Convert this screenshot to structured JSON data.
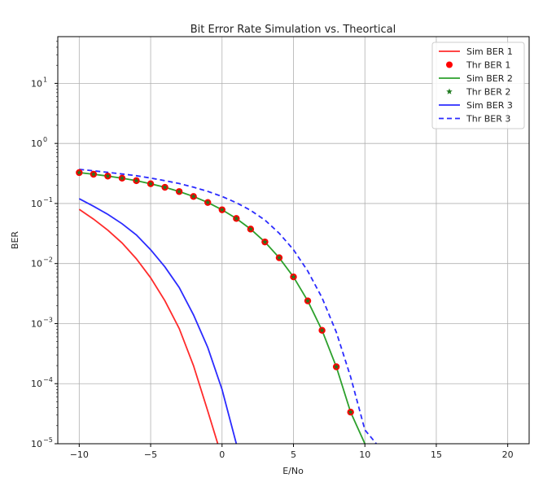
{
  "chart_data": {
    "type": "line",
    "title": "Bit Error Rate Simulation vs. Theortical",
    "xlabel": "E/No",
    "ylabel": "BER",
    "xlim": [
      -11.5,
      21.5
    ],
    "ylim": [
      1e-05,
      60
    ],
    "yscale": "log",
    "grid": true,
    "legend_position": "top-right",
    "x_ticks": [
      -10,
      -5,
      0,
      5,
      10,
      15,
      20
    ],
    "x_tick_labels": [
      "−10",
      "−5",
      "0",
      "5",
      "10",
      "15",
      "20"
    ],
    "y_ticks": [
      -5,
      -4,
      -3,
      -2,
      -1,
      0,
      1
    ],
    "y_tick_labels": [
      "10",
      "10",
      "10",
      "10",
      "10",
      "10",
      "10"
    ],
    "y_tick_exponents": [
      "−5",
      "−4",
      "−3",
      "−2",
      "−1",
      "0",
      "1"
    ],
    "series": [
      {
        "name": "Sim BER 1",
        "style": "solid-line",
        "color": "#ff2b2b",
        "x": [
          -10,
          -9,
          -8,
          -7,
          -6,
          -5,
          -4,
          -3,
          -2,
          -1,
          -0.3
        ],
        "y": [
          0.08,
          0.055,
          0.036,
          0.022,
          0.012,
          0.0058,
          0.0024,
          0.00083,
          0.0002,
          3.5e-05,
          1e-05
        ]
      },
      {
        "name": "Thr BER 1",
        "style": "marker-circle",
        "color": "#ff0000",
        "x": [
          -10,
          -9,
          -8,
          -7,
          -6,
          -5,
          -4,
          -3,
          -2,
          -1,
          0,
          1,
          2,
          3,
          4,
          5,
          6,
          7,
          8,
          9
        ],
        "y": [
          0.327,
          0.307,
          0.286,
          0.264,
          0.24,
          0.213,
          0.186,
          0.158,
          0.131,
          0.104,
          0.0786,
          0.0563,
          0.0375,
          0.0229,
          0.0125,
          0.006,
          0.00239,
          0.000773,
          0.000191,
          3.36e-05
        ]
      },
      {
        "name": "Sim BER 2",
        "style": "solid-line",
        "color": "#2ca02c",
        "x": [
          -10,
          -9,
          -8,
          -7,
          -6,
          -5,
          -4,
          -3,
          -2,
          -1,
          0,
          1,
          2,
          3,
          4,
          5,
          6,
          7,
          8,
          9,
          10
        ],
        "y": [
          0.327,
          0.307,
          0.286,
          0.264,
          0.24,
          0.213,
          0.186,
          0.158,
          0.131,
          0.104,
          0.0786,
          0.0563,
          0.0375,
          0.0229,
          0.0125,
          0.006,
          0.00239,
          0.000773,
          0.000191,
          3.36e-05,
          1e-05
        ]
      },
      {
        "name": "Thr BER 2",
        "style": "marker-star",
        "color": "#1f7a1f",
        "x": [
          -10,
          -9,
          -8,
          -7,
          -6,
          -5,
          -4,
          -3,
          -2,
          -1,
          0,
          1,
          2,
          3,
          4,
          5,
          6,
          7,
          8,
          9
        ],
        "y": [
          0.327,
          0.307,
          0.286,
          0.264,
          0.24,
          0.213,
          0.186,
          0.158,
          0.131,
          0.104,
          0.0786,
          0.0563,
          0.0375,
          0.0229,
          0.0125,
          0.006,
          0.00239,
          0.000773,
          0.000191,
          3.36e-05
        ]
      },
      {
        "name": "Sim BER 3",
        "style": "solid-line",
        "color": "#2b2bff",
        "x": [
          -10,
          -9,
          -8,
          -7,
          -6,
          -5,
          -4,
          -3,
          -2,
          -1,
          0,
          1
        ],
        "y": [
          0.12,
          0.09,
          0.066,
          0.046,
          0.03,
          0.017,
          0.0088,
          0.004,
          0.0014,
          0.0004,
          8e-05,
          1e-05
        ]
      },
      {
        "name": "Thr BER 3",
        "style": "dashed-line",
        "color": "#2b2bff",
        "x": [
          -10,
          -9,
          -8,
          -7,
          -6,
          -5,
          -4,
          -3,
          -2,
          -1,
          0,
          1,
          2,
          3,
          4,
          5,
          6,
          7,
          8,
          9,
          10,
          10.8
        ],
        "y": [
          0.37,
          0.35,
          0.33,
          0.31,
          0.29,
          0.265,
          0.24,
          0.215,
          0.187,
          0.159,
          0.131,
          0.103,
          0.077,
          0.053,
          0.032,
          0.017,
          0.0075,
          0.0027,
          0.00072,
          0.00013,
          1.7e-05,
          1e-05
        ]
      }
    ]
  }
}
